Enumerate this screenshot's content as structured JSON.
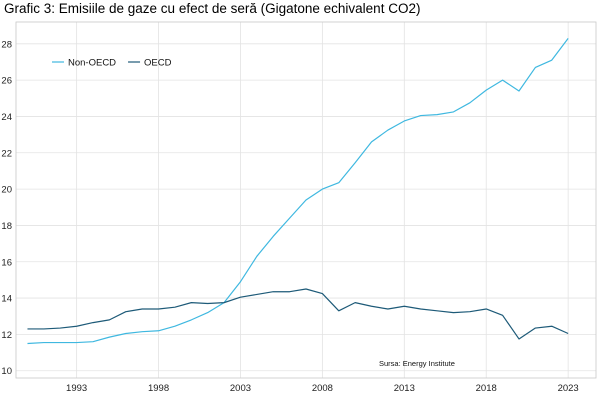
{
  "chart_data": {
    "type": "line",
    "title": "Grafic 3: Emisiile de gaze cu efect de seră (Gigatone echivalent CO2)",
    "xlabel": "",
    "ylabel": "",
    "x": [
      1990,
      1991,
      1992,
      1993,
      1994,
      1995,
      1996,
      1997,
      1998,
      1999,
      2000,
      2001,
      2002,
      2003,
      2004,
      2005,
      2006,
      2007,
      2008,
      2009,
      2010,
      2011,
      2012,
      2013,
      2014,
      2015,
      2016,
      2017,
      2018,
      2019,
      2020,
      2021,
      2022,
      2023
    ],
    "xticks": [
      1993,
      1998,
      2003,
      2008,
      2013,
      2018,
      2023
    ],
    "yticks": [
      10,
      12,
      14,
      16,
      18,
      20,
      22,
      24,
      26,
      28
    ],
    "xlim": [
      1989.3,
      2024.7
    ],
    "ylim": [
      9.6,
      29.2
    ],
    "grid": true,
    "legend_position": "top-left",
    "series": [
      {
        "name": "Non-OECD",
        "color": "#3fb8e0",
        "values": [
          11.5,
          11.55,
          11.55,
          11.55,
          11.6,
          11.85,
          12.05,
          12.15,
          12.2,
          12.45,
          12.8,
          13.2,
          13.75,
          14.9,
          16.3,
          17.4,
          18.4,
          19.4,
          20.0,
          20.35,
          21.45,
          22.6,
          23.25,
          23.75,
          24.05,
          24.1,
          24.25,
          24.75,
          25.45,
          26.0,
          25.4,
          26.7,
          27.1,
          28.3
        ]
      },
      {
        "name": "OECD",
        "color": "#1d5a78",
        "values": [
          12.3,
          12.3,
          12.35,
          12.45,
          12.65,
          12.8,
          13.25,
          13.4,
          13.4,
          13.5,
          13.75,
          13.7,
          13.75,
          14.05,
          14.2,
          14.35,
          14.35,
          14.5,
          14.25,
          13.3,
          13.75,
          13.55,
          13.4,
          13.55,
          13.4,
          13.3,
          13.2,
          13.25,
          13.4,
          13.05,
          11.75,
          12.35,
          12.45,
          12.05
        ]
      }
    ],
    "source_note": "Sursa: Energy Institute"
  }
}
